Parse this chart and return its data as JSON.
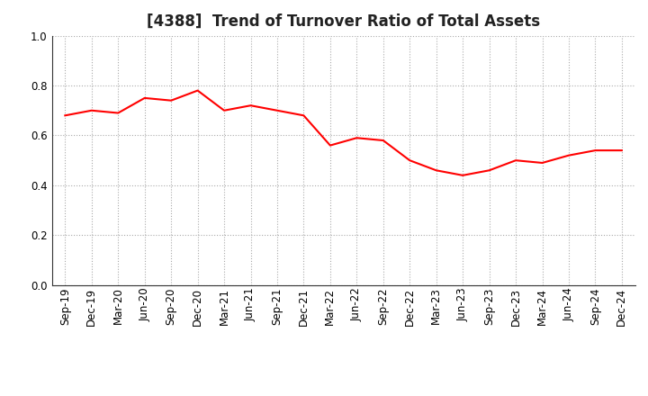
{
  "title": "[4388]  Trend of Turnover Ratio of Total Assets",
  "labels": [
    "Sep-19",
    "Dec-19",
    "Mar-20",
    "Jun-20",
    "Sep-20",
    "Dec-20",
    "Mar-21",
    "Jun-21",
    "Sep-21",
    "Dec-21",
    "Mar-22",
    "Jun-22",
    "Sep-22",
    "Dec-22",
    "Mar-23",
    "Jun-23",
    "Sep-23",
    "Dec-23",
    "Mar-24",
    "Jun-24",
    "Sep-24",
    "Dec-24"
  ],
  "values": [
    0.68,
    0.7,
    0.69,
    0.75,
    0.74,
    0.78,
    0.7,
    0.72,
    0.7,
    0.68,
    0.56,
    0.59,
    0.58,
    0.5,
    0.46,
    0.44,
    0.46,
    0.5,
    0.49,
    0.52,
    0.54,
    0.54
  ],
  "line_color": "#FF0000",
  "line_width": 1.5,
  "ylim": [
    0.0,
    1.0
  ],
  "yticks": [
    0.0,
    0.2,
    0.4,
    0.6,
    0.8,
    1.0
  ],
  "grid_color": "#aaaaaa",
  "grid_style": "dotted",
  "bg_color": "#FFFFFF",
  "title_fontsize": 12,
  "tick_fontsize": 8.5
}
